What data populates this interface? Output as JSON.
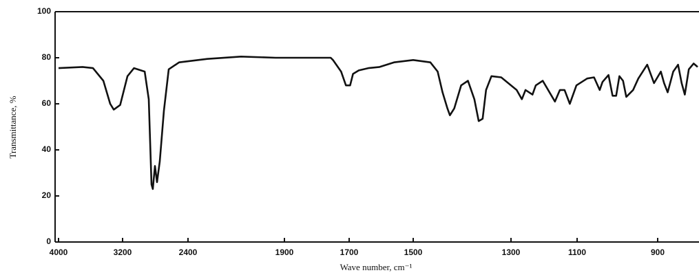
{
  "chart_data": {
    "type": "line",
    "x_label": "Wave number, cm⁻¹",
    "y_label": "Transmittance, %",
    "xlim": [
      4000,
      800
    ],
    "xticks": [
      4000,
      3200,
      2400,
      1900,
      1700,
      1500,
      1300,
      1100,
      900
    ],
    "ylim": [
      0,
      100
    ],
    "yticks": [
      0,
      20,
      40,
      60,
      80,
      100
    ],
    "color": "#111111",
    "x": [
      4000,
      3700,
      3570,
      3440,
      3355,
      3310,
      3230,
      3140,
      3060,
      2930,
      2880,
      2846,
      2830,
      2804,
      2779,
      2745,
      2695,
      2636,
      2509,
      2300,
      2125,
      1946,
      1757,
      1750,
      1725,
      1710,
      1697,
      1688,
      1670,
      1640,
      1605,
      1560,
      1500,
      1465,
      1450,
      1440,
      1430,
      1425,
      1416,
      1402,
      1388,
      1375,
      1366,
      1358,
      1351,
      1340,
      1320,
      1283,
      1267,
      1256,
      1235,
      1225,
      1204,
      1167,
      1152,
      1138,
      1122,
      1102,
      1075,
      1058,
      1044,
      1037,
      1022,
      1012,
      1003,
      995,
      986,
      978,
      961,
      948,
      926,
      909,
      892,
      884,
      875,
      861,
      849,
      840,
      832,
      822,
      810,
      800
    ],
    "values": [
      75.5,
      76,
      75.5,
      70,
      60,
      57.5,
      59.5,
      72,
      75.5,
      74,
      62,
      25,
      23,
      33,
      26,
      35,
      57,
      75,
      78,
      79.5,
      80.5,
      80,
      80,
      79,
      74,
      68,
      68,
      73,
      74.5,
      75.5,
      76,
      78,
      79,
      78,
      74,
      65,
      58,
      55,
      58,
      68,
      70,
      62,
      52.5,
      53.5,
      66,
      72,
      71.5,
      66,
      62,
      66,
      64,
      68,
      70,
      61,
      66,
      66,
      60,
      68,
      71,
      71.5,
      66,
      69.5,
      72.5,
      63.5,
      63.5,
      72,
      70,
      63,
      66,
      71,
      77,
      69,
      74,
      69,
      65,
      74,
      77,
      69,
      64,
      75,
      77.5,
      76
    ]
  }
}
